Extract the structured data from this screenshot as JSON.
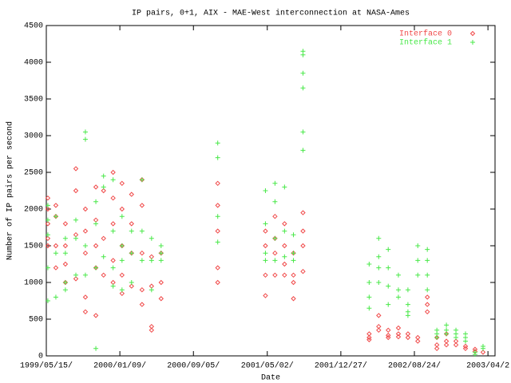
{
  "chart_data": {
    "type": "scatter",
    "title": "IP pairs, 0+1, AIX - MAE-West interconnection at NASA-Ames",
    "x_label": "Date",
    "y_label": "Number of IP pairs per second",
    "xlim": [
      "1999/05/15",
      "2003/05/12"
    ],
    "xticks": [
      {
        "value": "1999/05/15",
        "label": "1999/05/15/"
      },
      {
        "value": "2000/01/09",
        "label": "2000/01/09/"
      },
      {
        "value": "2000/09/04",
        "label": "2000/09/05/"
      },
      {
        "value": "2001/05/02",
        "label": "2001/05/02/"
      },
      {
        "value": "2001/12/27",
        "label": "2001/12/27/"
      },
      {
        "value": "2002/08/23",
        "label": "2002/08/24/"
      },
      {
        "value": "2003/04/19",
        "label": "2003/04/2"
      }
    ],
    "ylim": [
      0,
      4500
    ],
    "yticks": [
      0,
      500,
      1000,
      1500,
      2000,
      2500,
      3000,
      3500,
      4000,
      4500
    ],
    "grid": false,
    "legend": "top-right",
    "series": [
      {
        "name": "Interface 0",
        "color": "#f04848",
        "marker": "diamond",
        "x": [
          "1999/05/20",
          "1999/05/20",
          "1999/05/20",
          "1999/05/20",
          "1999/05/20",
          "1999/06/15",
          "1999/06/15",
          "1999/06/15",
          "1999/06/15",
          "1999/07/16",
          "1999/07/16",
          "1999/07/16",
          "1999/07/16",
          "1999/08/19",
          "1999/08/19",
          "1999/08/19",
          "1999/08/19",
          "1999/09/19",
          "1999/09/19",
          "1999/09/19",
          "1999/09/19",
          "1999/09/19",
          "1999/10/23",
          "1999/10/23",
          "1999/10/23",
          "1999/10/23",
          "1999/10/23",
          "1999/11/17",
          "1999/11/17",
          "1999/11/17",
          "1999/12/18",
          "1999/12/18",
          "1999/12/18",
          "1999/12/18",
          "1999/12/18",
          "2000/01/16",
          "2000/01/16",
          "2000/01/16",
          "2000/01/16",
          "2000/01/16",
          "2000/02/16",
          "2000/02/16",
          "2000/02/16",
          "2000/02/16",
          "2000/03/21",
          "2000/03/21",
          "2000/03/21",
          "2000/03/21",
          "2000/03/21",
          "2000/04/21",
          "2000/04/21",
          "2000/04/21",
          "2000/04/21",
          "2000/05/22",
          "2000/05/22",
          "2000/05/22",
          "2000/11/22",
          "2000/11/22",
          "2000/11/22",
          "2000/11/22",
          "2000/11/22",
          "2001/04/26",
          "2001/04/26",
          "2001/04/26",
          "2001/04/26",
          "2001/05/27",
          "2001/05/27",
          "2001/05/27",
          "2001/05/27",
          "2001/06/27",
          "2001/06/27",
          "2001/06/27",
          "2001/06/27",
          "2001/07/26",
          "2001/07/26",
          "2001/07/26",
          "2001/07/26",
          "2001/08/26",
          "2001/08/26",
          "2001/08/26",
          "2001/08/26",
          "2002/03/29",
          "2002/03/29",
          "2002/03/29",
          "2002/04/29",
          "2002/04/29",
          "2002/04/29",
          "2002/05/30",
          "2002/05/30",
          "2002/05/30",
          "2002/07/02",
          "2002/07/02",
          "2002/07/02",
          "2002/08/02",
          "2002/08/02",
          "2002/09/03",
          "2002/09/03",
          "2002/10/04",
          "2002/10/04",
          "2002/10/04",
          "2002/11/04",
          "2002/11/04",
          "2002/11/04",
          "2002/12/05",
          "2002/12/05",
          "2002/12/05",
          "2003/01/05",
          "2003/01/05",
          "2003/02/05",
          "2003/02/05",
          "2003/03/08",
          "2003/03/08",
          "2003/04/03"
        ],
        "values": [
          2150,
          2000,
          1800,
          1600,
          1500,
          2050,
          1900,
          1500,
          1200,
          1800,
          1500,
          1250,
          1000,
          2550,
          2250,
          1650,
          1050,
          2000,
          1700,
          1400,
          800,
          600,
          2300,
          1850,
          1500,
          1200,
          550,
          2250,
          1600,
          1100,
          2500,
          2150,
          1800,
          1300,
          1000,
          2350,
          2000,
          1500,
          1100,
          850,
          2200,
          1800,
          1400,
          950,
          2400,
          2050,
          1400,
          900,
          700,
          1350,
          950,
          400,
          350,
          1400,
          1000,
          780,
          2350,
          2050,
          1700,
          1200,
          1000,
          1700,
          1500,
          1100,
          820,
          1900,
          1600,
          1400,
          1100,
          1800,
          1500,
          1250,
          1100,
          1400,
          1100,
          1000,
          780,
          1950,
          1700,
          1500,
          1150,
          300,
          250,
          220,
          550,
          400,
          350,
          350,
          280,
          250,
          380,
          300,
          260,
          300,
          250,
          250,
          200,
          800,
          700,
          600,
          250,
          150,
          100,
          300,
          200,
          150,
          200,
          150,
          130,
          100,
          90,
          60,
          50
        ]
      },
      {
        "name": "Interface 1",
        "color": "#48e848",
        "marker": "plus",
        "x": [
          "1999/05/20",
          "1999/05/20",
          "1999/05/20",
          "1999/05/20",
          "1999/05/20",
          "1999/06/15",
          "1999/06/15",
          "1999/06/15",
          "1999/07/16",
          "1999/07/16",
          "1999/07/16",
          "1999/07/16",
          "1999/08/19",
          "1999/08/19",
          "1999/08/19",
          "1999/09/19",
          "1999/09/19",
          "1999/09/19",
          "1999/09/19",
          "1999/10/23",
          "1999/10/23",
          "1999/10/23",
          "1999/10/23",
          "1999/11/17",
          "1999/11/17",
          "1999/11/17",
          "1999/12/18",
          "1999/12/18",
          "1999/12/18",
          "1999/12/18",
          "2000/01/16",
          "2000/01/16",
          "2000/01/16",
          "2000/01/16",
          "2000/02/16",
          "2000/02/16",
          "2000/02/16",
          "2000/03/21",
          "2000/03/21",
          "2000/03/21",
          "2000/04/21",
          "2000/04/21",
          "2000/04/21",
          "2000/05/22",
          "2000/05/22",
          "2000/05/22",
          "2000/11/22",
          "2000/11/22",
          "2000/11/22",
          "2000/11/22",
          "2001/04/26",
          "2001/04/26",
          "2001/04/26",
          "2001/04/26",
          "2001/05/27",
          "2001/05/27",
          "2001/05/27",
          "2001/05/27",
          "2001/06/27",
          "2001/06/27",
          "2001/06/27",
          "2001/07/26",
          "2001/07/26",
          "2001/07/26",
          "2001/08/26",
          "2001/08/26",
          "2001/08/26",
          "2001/08/26",
          "2001/08/26",
          "2001/08/26",
          "2002/03/29",
          "2002/03/29",
          "2002/03/29",
          "2002/03/29",
          "2002/04/29",
          "2002/04/29",
          "2002/04/29",
          "2002/04/29",
          "2002/05/30",
          "2002/05/30",
          "2002/05/30",
          "2002/05/30",
          "2002/07/02",
          "2002/07/02",
          "2002/07/02",
          "2002/08/02",
          "2002/08/02",
          "2002/08/02",
          "2002/08/02",
          "2002/09/03",
          "2002/09/03",
          "2002/09/03",
          "2002/10/04",
          "2002/10/04",
          "2002/10/04",
          "2002/10/04",
          "2002/11/04",
          "2002/11/04",
          "2002/11/04",
          "2002/12/05",
          "2002/12/05",
          "2002/12/05",
          "2003/01/05",
          "2003/01/05",
          "2003/01/05",
          "2003/02/05",
          "2003/02/05",
          "2003/02/05",
          "2003/03/08",
          "2003/03/08",
          "2003/04/03",
          "2003/04/03"
        ],
        "values": [
          2050,
          1850,
          1650,
          1200,
          750,
          1900,
          1400,
          800,
          1600,
          1400,
          1000,
          900,
          1850,
          1600,
          1100,
          3050,
          2950,
          1500,
          1100,
          2100,
          1800,
          1200,
          100,
          2450,
          2300,
          1350,
          2400,
          1700,
          1200,
          950,
          1900,
          1500,
          1300,
          900,
          1700,
          1400,
          1000,
          2400,
          1700,
          1300,
          1600,
          1300,
          900,
          1500,
          1400,
          1300,
          2900,
          2700,
          1900,
          1550,
          2250,
          1800,
          1400,
          1300,
          2350,
          2100,
          1600,
          1300,
          2300,
          1700,
          1350,
          1650,
          1400,
          1300,
          4150,
          4100,
          3850,
          3650,
          3050,
          2800,
          1250,
          1000,
          800,
          650,
          1600,
          1350,
          1200,
          1000,
          1450,
          1200,
          950,
          700,
          1100,
          900,
          800,
          900,
          700,
          600,
          550,
          1500,
          1300,
          1100,
          1450,
          1300,
          1100,
          900,
          350,
          300,
          250,
          420,
          350,
          300,
          350,
          300,
          250,
          300,
          250,
          200,
          50,
          20,
          130,
          100
        ]
      }
    ]
  }
}
